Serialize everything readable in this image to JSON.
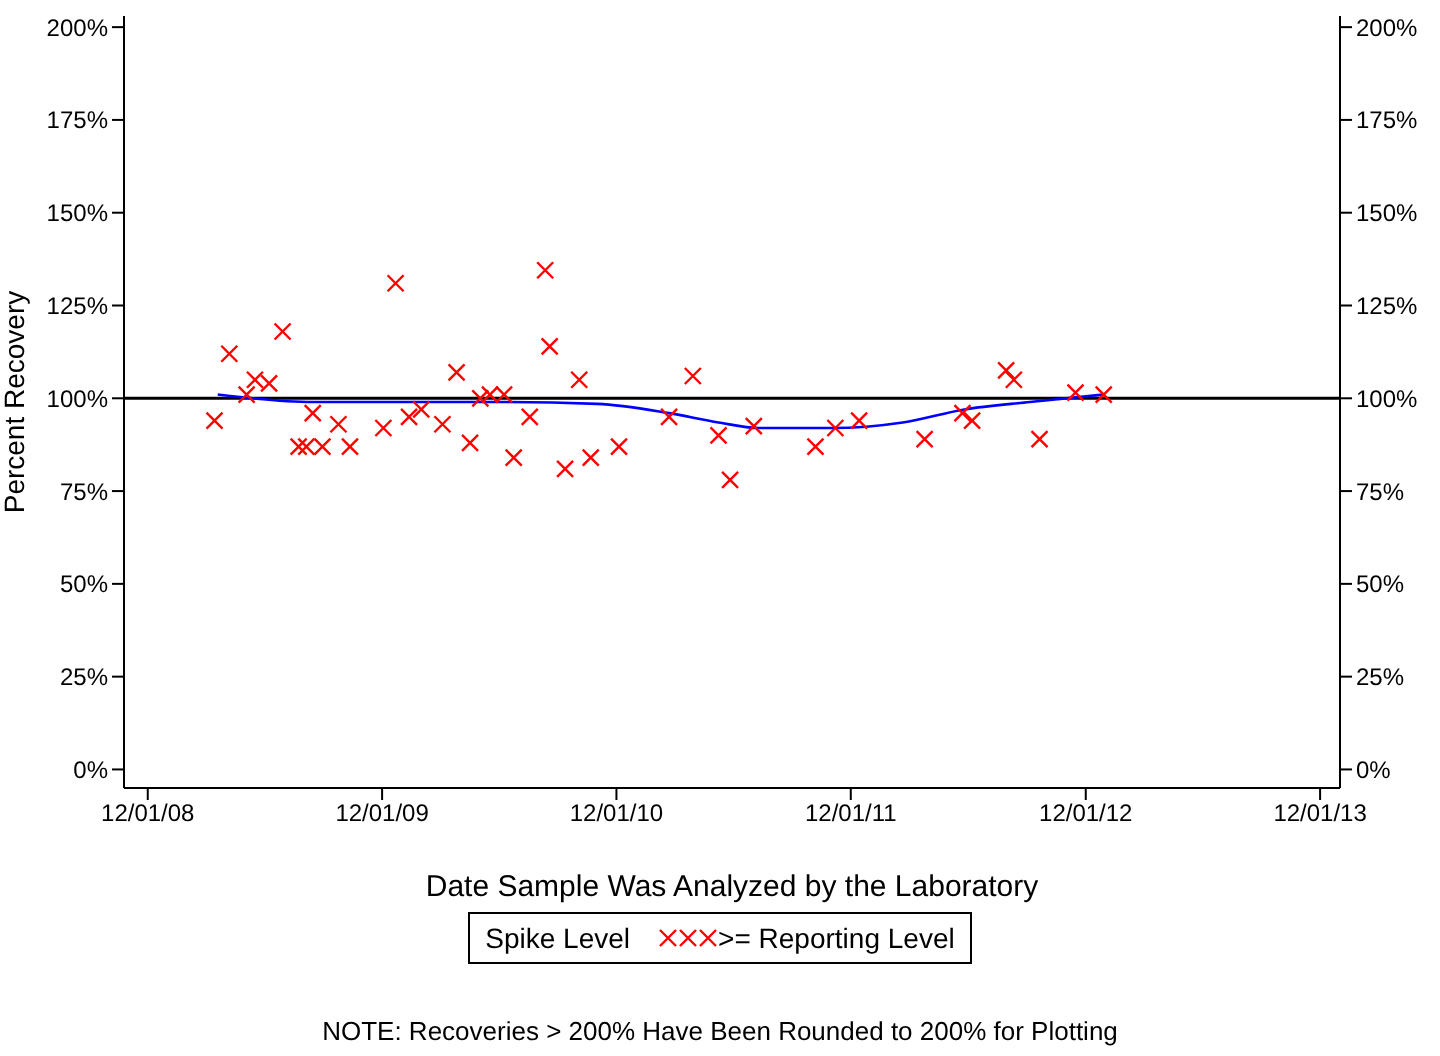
{
  "chart_data": {
    "type": "scatter",
    "xlabel": "Date Sample Was Analyzed by the Laboratory",
    "ylabel": "Percent Recovery",
    "legend_title": "Spike Level",
    "annotations": [
      "NOTE: Recoveries > 200% Have Been Rounded to 200% for Plotting"
    ],
    "xlim": [
      "2008-10-25",
      "2014-01-01"
    ],
    "xticks": [
      {
        "value": "2008-12-01",
        "label": "12/01/08"
      },
      {
        "value": "2009-12-01",
        "label": "12/01/09"
      },
      {
        "value": "2010-12-01",
        "label": "12/01/10"
      },
      {
        "value": "2011-12-01",
        "label": "12/01/11"
      },
      {
        "value": "2012-12-01",
        "label": "12/01/12"
      },
      {
        "value": "2013-12-01",
        "label": "12/01/13"
      }
    ],
    "ylim": [
      -5,
      203
    ],
    "yticks": [
      {
        "value": 0,
        "label": "0%"
      },
      {
        "value": 25,
        "label": "25%"
      },
      {
        "value": 50,
        "label": "50%"
      },
      {
        "value": 75,
        "label": "75%"
      },
      {
        "value": 100,
        "label": "100%"
      },
      {
        "value": 125,
        "label": "125%"
      },
      {
        "value": 150,
        "label": "150%"
      },
      {
        "value": 175,
        "label": "175%"
      },
      {
        "value": 200,
        "label": "200%"
      }
    ],
    "y2lim": [
      -5,
      203
    ],
    "y2ticks": [
      {
        "value": 0,
        "label": "0%"
      },
      {
        "value": 25,
        "label": "25%"
      },
      {
        "value": 50,
        "label": "50%"
      },
      {
        "value": 75,
        "label": "75%"
      },
      {
        "value": 100,
        "label": "100%"
      },
      {
        "value": 125,
        "label": "125%"
      },
      {
        "value": 150,
        "label": "150%"
      },
      {
        "value": 175,
        "label": "175%"
      },
      {
        "value": 200,
        "label": "200%"
      }
    ],
    "grid": false,
    "legend": "bottom",
    "marker": "cross",
    "ref_lines": [
      {
        "axis": "y",
        "value": 100,
        "color": "#000000"
      }
    ],
    "series": [
      {
        "name": ">= Reporting Level",
        "type": "scatter",
        "color": "#ff0000",
        "x": [
          "2009-03-15",
          "2009-04-07",
          "2009-05-04",
          "2009-05-17",
          "2009-06-08",
          "2009-06-29",
          "2009-07-24",
          "2009-08-05",
          "2009-08-15",
          "2009-08-30",
          "2009-09-24",
          "2009-10-12",
          "2009-12-03",
          "2009-12-22",
          "2010-01-12",
          "2010-01-31",
          "2010-03-05",
          "2010-03-27",
          "2010-04-17",
          "2010-05-03",
          "2010-05-18",
          "2010-06-09",
          "2010-06-24",
          "2010-07-19",
          "2010-08-12",
          "2010-08-19",
          "2010-09-12",
          "2010-10-04",
          "2010-10-22",
          "2010-12-05",
          "2011-02-21",
          "2011-03-30",
          "2011-05-09",
          "2011-05-27",
          "2011-07-03",
          "2011-10-07",
          "2011-11-07",
          "2011-12-14",
          "2012-03-25",
          "2012-05-23",
          "2012-06-07",
          "2012-07-30",
          "2012-08-11",
          "2012-09-20",
          "2012-11-15",
          "2012-12-29"
        ],
        "values": [
          94,
          112,
          101,
          105,
          104,
          118,
          87,
          87,
          96,
          87,
          93,
          87,
          92,
          131,
          95,
          97,
          93,
          107,
          88,
          100,
          101,
          101,
          84,
          95,
          134.5,
          114,
          81,
          105,
          84,
          87,
          95,
          106,
          90,
          78,
          92.5,
          87,
          92,
          94,
          89,
          96,
          94,
          107.5,
          105,
          89,
          101.5,
          101
        ]
      },
      {
        "type": "line",
        "color": "#0000ff",
        "marker": "none",
        "x": [
          "2009-03-20",
          "2009-08-15",
          "2010-05-18",
          "2010-11-01",
          "2011-02-21",
          "2011-05-09",
          "2011-07-10",
          "2011-11-01",
          "2012-02-20",
          "2012-05-26",
          "2012-09-05",
          "2012-12-29"
        ],
        "values": [
          101,
          99,
          99,
          98.5,
          96,
          93.5,
          92,
          92,
          93.5,
          97,
          99,
          101
        ]
      }
    ]
  }
}
